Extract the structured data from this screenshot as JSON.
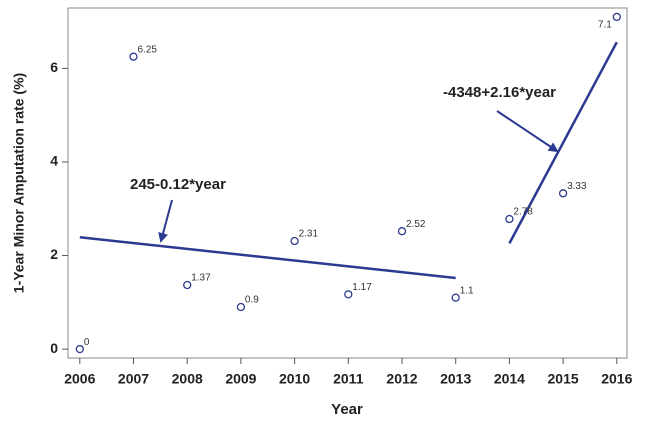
{
  "chart_data": {
    "type": "scatter",
    "xlabel": "Year",
    "ylabel": "1-Year Minor Amputation rate (%)",
    "x": [
      2006,
      2007,
      2008,
      2009,
      2010,
      2011,
      2012,
      2013,
      2014,
      2015,
      2016
    ],
    "values": [
      0,
      6.25,
      1.37,
      0.9,
      2.31,
      1.17,
      2.52,
      1.1,
      2.78,
      3.33,
      7.1
    ],
    "color": "#2b3990",
    "xlim": [
      2005.78,
      2016.19
    ],
    "ylim": [
      -0.19,
      7.29
    ],
    "xticks": [
      2006,
      2007,
      2008,
      2009,
      2010,
      2011,
      2012,
      2013,
      2014,
      2015,
      2016
    ],
    "yticks": [
      0,
      2,
      4,
      6
    ],
    "fits": [
      {
        "label": "245-0.12*year",
        "x": [
          2006,
          2013
        ],
        "values": [
          2.39,
          1.52
        ]
      },
      {
        "label": "-4348+2.16*year",
        "x": [
          2014,
          2016
        ],
        "values": [
          2.26,
          6.56
        ]
      }
    ]
  }
}
